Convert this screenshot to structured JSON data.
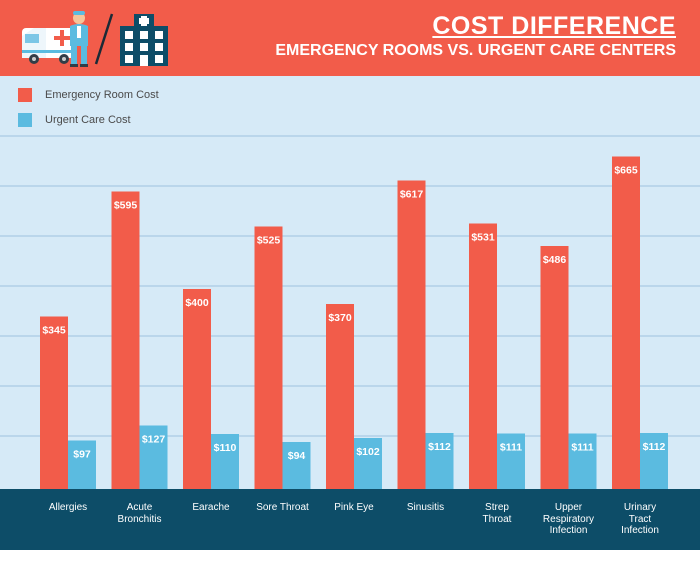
{
  "header": {
    "title": "COST DIFFERENCE",
    "subtitle": "EMERGENCY ROOMS VS. URGENT CARE CENTERS"
  },
  "colors": {
    "header_bg": "#f25c4a",
    "plot_bg": "#d6eaf7",
    "footer_bg": "#0d4d68",
    "er_bar": "#f25c4a",
    "uc_bar": "#5bbbe0",
    "gridline": "#a9c9e4"
  },
  "illustration": {
    "icons": [
      "ambulance-icon",
      "doctor-icon",
      "hospital-icon"
    ]
  },
  "chart_data": {
    "type": "bar",
    "categories": [
      "Allergies",
      "Acute Bronchitis",
      "Earache",
      "Sore Throat",
      "Pink Eye",
      "Sinusitis",
      "Strep Throat",
      "Upper Respiratory Infection",
      "Urinary Tract Infection"
    ],
    "category_lines": [
      [
        "Allergies"
      ],
      [
        "Acute",
        "Bronchitis"
      ],
      [
        "Earache"
      ],
      [
        "Sore Throat"
      ],
      [
        "Pink Eye"
      ],
      [
        "Sinusitis"
      ],
      [
        "Strep",
        "Throat"
      ],
      [
        "Upper",
        "Respiratory",
        "Infection"
      ],
      [
        "Urinary",
        "Tract",
        "Infection"
      ]
    ],
    "series": [
      {
        "name": "Emergency Room Cost",
        "values": [
          345,
          595,
          400,
          525,
          370,
          617,
          531,
          486,
          665
        ],
        "labels": [
          "$345",
          "$595",
          "$400",
          "$525",
          "$370",
          "$617",
          "$531",
          "$486",
          "$665"
        ]
      },
      {
        "name": "Urgent Care Cost",
        "values": [
          97,
          127,
          110,
          94,
          102,
          112,
          111,
          111,
          112
        ],
        "labels": [
          "$97",
          "$127",
          "$110",
          "$94",
          "$102",
          "$112",
          "$111",
          "$111",
          "$112"
        ]
      }
    ],
    "ylim": [
      0,
      700
    ],
    "grid": true,
    "legend_position": "top-left",
    "title": "COST DIFFERENCE",
    "subtitle": "EMERGENCY ROOMS VS. URGENT CARE CENTERS",
    "xlabel": "",
    "ylabel": ""
  }
}
